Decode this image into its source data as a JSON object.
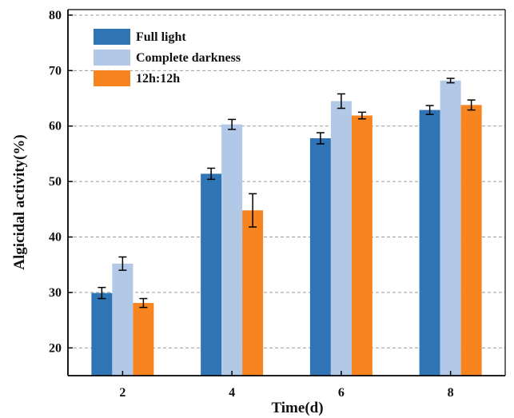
{
  "chart_data": {
    "type": "bar",
    "title": "",
    "xlabel": "Time(d)",
    "ylabel": "Algicidal activity(%)",
    "categories": [
      "2",
      "4",
      "6",
      "8"
    ],
    "ylim": [
      15,
      81
    ],
    "yticks": [
      20,
      30,
      40,
      50,
      60,
      70,
      80
    ],
    "grid": true,
    "legend_position": "top-left",
    "series": [
      {
        "name": "Full light",
        "color": "#2F74B5",
        "values": [
          29.9,
          51.4,
          57.8,
          62.9
        ],
        "errors": [
          1.0,
          1.0,
          1.0,
          0.8
        ]
      },
      {
        "name": "Complete darkness",
        "color": "#B1C8E6",
        "values": [
          35.2,
          60.3,
          64.5,
          68.2
        ],
        "errors": [
          1.2,
          0.9,
          1.3,
          0.4
        ]
      },
      {
        "name": "12h:12h",
        "color": "#F7841E",
        "values": [
          28.1,
          44.8,
          61.9,
          63.8
        ],
        "errors": [
          0.8,
          3.0,
          0.6,
          0.9
        ]
      }
    ]
  }
}
